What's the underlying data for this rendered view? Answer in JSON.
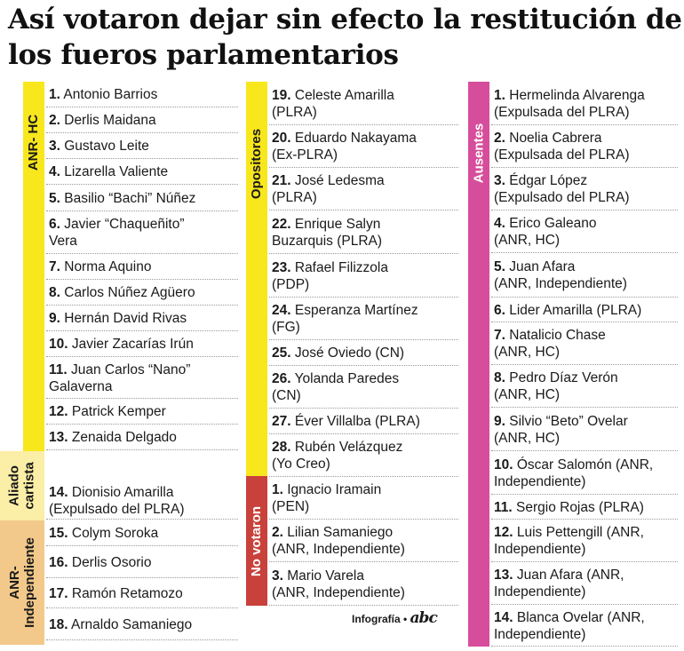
{
  "title": "Así votaron dejar sin efecto la restitución de los fueros parlamentarios",
  "groups": {
    "anr_hc": {
      "label": "ANR- HC",
      "color": "#f8e71c"
    },
    "aliado": {
      "label": "Aliado cartista",
      "color": "#fbeea6"
    },
    "anr_ind": {
      "label": "ANR- Independiente",
      "color": "#f2c98a"
    },
    "opositores": {
      "label": "Opositores",
      "color": "#f8e71c"
    },
    "no_votaron": {
      "label": "No votaron",
      "color": "#c9413b"
    },
    "ausentes": {
      "label": "Ausentes",
      "color": "#d64d9b"
    }
  },
  "col1": [
    {
      "num": "1.",
      "text": "Antonio Barrios"
    },
    {
      "num": "2.",
      "text": "Derlis Maidana"
    },
    {
      "num": "3.",
      "text": "Gustavo Leite"
    },
    {
      "num": "4.",
      "text": "Lizarella Valiente"
    },
    {
      "num": "5.",
      "text": "Basilio “Bachi” Núñez"
    },
    {
      "num": "6.",
      "text": "Javier “Chaqueñito”",
      "text2": "Vera"
    },
    {
      "num": "7.",
      "text": "Norma Aquino"
    },
    {
      "num": "8.",
      "text": "Carlos Núñez Agüero"
    },
    {
      "num": "9.",
      "text": "Hernán David Rivas"
    },
    {
      "num": "10.",
      "text": "Javier Zacarías Irún"
    },
    {
      "num": "11.",
      "text": "Juan Carlos “Nano”",
      "text2": "Galaverna"
    },
    {
      "num": "12.",
      "text": "Patrick Kemper"
    },
    {
      "num": "13.",
      "text": "Zenaida Delgado"
    },
    {
      "num": "14.",
      "text": "Dionisio Amarilla",
      "text2": "(Expulsado del PLRA)"
    },
    {
      "num": "15.",
      "text": "Colym Soroka"
    },
    {
      "num": "16.",
      "text": "Derlis Osorio"
    },
    {
      "num": "17.",
      "text": "Ramón Retamozo"
    },
    {
      "num": "18.",
      "text": "Arnaldo Samaniego"
    }
  ],
  "col2": [
    {
      "num": "19.",
      "text": "Celeste Amarilla",
      "text2": "(PLRA)"
    },
    {
      "num": "20.",
      "text": "Eduardo Nakayama",
      "text2": "(Ex-PLRA)"
    },
    {
      "num": "21.",
      "text": "José Ledesma",
      "text2": "(PLRA)"
    },
    {
      "num": "22.",
      "text": "Enrique Salyn",
      "text2": "Buzarquis (PLRA)"
    },
    {
      "num": "23.",
      "text": "Rafael Filizzola",
      "text2": "(PDP)"
    },
    {
      "num": "24.",
      "text": "Esperanza Martínez",
      "text2": "(FG)"
    },
    {
      "num": "25.",
      "text": "José Oviedo (CN)"
    },
    {
      "num": "26.",
      "text": "Yolanda Paredes",
      "text2": "(CN)"
    },
    {
      "num": "27.",
      "text": "Éver Villalba (PLRA)"
    },
    {
      "num": "28.",
      "text": "Rubén Velázquez",
      "text2": "(Yo Creo)"
    },
    {
      "num": "1.",
      "text": "Ignacio Iramain",
      "text2": "(PEN)"
    },
    {
      "num": "2.",
      "text": "Lilian Samaniego",
      "text2": "(ANR, Independiente)"
    },
    {
      "num": "3.",
      "text": "Mario Varela",
      "text2": "(ANR, Independiente)"
    }
  ],
  "col3": [
    {
      "num": "1.",
      "text": "Hermelinda Alvarenga",
      "text2": "(Expulsada del PLRA)"
    },
    {
      "num": "2.",
      "text": "Noelia Cabrera",
      "text2": "(Expulsada del PLRA)"
    },
    {
      "num": "3.",
      "text": "Édgar López",
      "text2": "(Expulsado del PLRA)"
    },
    {
      "num": "4.",
      "text": "Erico Galeano",
      "text2": "(ANR, HC)"
    },
    {
      "num": "5.",
      "text": "Juan Afara",
      "text2": "(ANR, Independiente)"
    },
    {
      "num": "6.",
      "text": "Lider Amarilla (PLRA)"
    },
    {
      "num": "7.",
      "text": "Natalicio Chase",
      "text2": "(ANR, HC)"
    },
    {
      "num": "8.",
      "text": "Pedro Díaz Verón",
      "text2": "(ANR, HC)"
    },
    {
      "num": "9.",
      "text": "Silvio “Beto” Ovelar",
      "text2": "(ANR, HC)"
    },
    {
      "num": "10.",
      "text": "Óscar Salomón (ANR,",
      "text2": "Independiente)"
    },
    {
      "num": "11.",
      "text": "Sergio Rojas (PLRA)"
    },
    {
      "num": "12.",
      "text": "Luis Pettengill (ANR,",
      "text2": "Independiente)"
    },
    {
      "num": "13.",
      "text": "Juan Afara (ANR,",
      "text2": "Independiente)"
    },
    {
      "num": "14.",
      "text": "Blanca Ovelar (ANR,",
      "text2": "Independiente)"
    }
  ],
  "credit": {
    "label": "Infografía •",
    "logo": "abc"
  }
}
